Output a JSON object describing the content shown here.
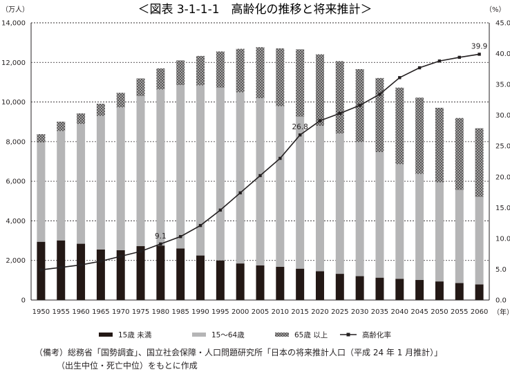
{
  "chart_data": {
    "type": "bar",
    "stacked": true,
    "title": "＜図表 3-1-1-1　高齢化の推移と将来推計＞",
    "y_left_unit": "（万人）",
    "y_right_unit": "（%）",
    "x_unit": "（年）",
    "ylim_left": [
      0,
      14000
    ],
    "ylim_right": [
      0,
      45
    ],
    "left_ticks": [
      "0",
      "2,000",
      "4,000",
      "6,000",
      "8,000",
      "10,000",
      "12,000",
      "14,000"
    ],
    "right_ticks": [
      "0.0",
      "5.0",
      "10.0",
      "15.0",
      "20.0",
      "25.0",
      "30.0",
      "35.0",
      "40.0",
      "45.0"
    ],
    "categories": [
      "1950",
      "1955",
      "1960",
      "1965",
      "1970",
      "1975",
      "1980",
      "1985",
      "1990",
      "1995",
      "2000",
      "2005",
      "2010",
      "2015",
      "2020",
      "2025",
      "2030",
      "2035",
      "2040",
      "2045",
      "2050",
      "2055",
      "2060"
    ],
    "series": [
      {
        "name": "15歳 未満",
        "color": "#231815",
        "values": [
          2943,
          3012,
          2843,
          2553,
          2515,
          2722,
          2751,
          2603,
          2249,
          2001,
          1847,
          1752,
          1680,
          1583,
          1457,
          1324,
          1204,
          1129,
          1073,
          1012,
          939,
          861,
          791
        ]
      },
      {
        "name": "15～64歳",
        "color": "#b5b5b6",
        "values": [
          5017,
          5517,
          6047,
          6744,
          7212,
          7581,
          7883,
          8251,
          8590,
          8726,
          8638,
          8442,
          8103,
          7682,
          7341,
          7084,
          6773,
          6343,
          5787,
          5353,
          5001,
          4706,
          4418
        ]
      },
      {
        "name": "65歳 以上",
        "color": "#595757",
        "values": [
          416,
          479,
          535,
          618,
          739,
          887,
          1065,
          1247,
          1489,
          1828,
          2204,
          2576,
          2925,
          3395,
          3612,
          3657,
          3685,
          3741,
          3868,
          3856,
          3768,
          3626,
          3464
        ]
      }
    ],
    "line": {
      "name": "高齢化率",
      "axis": "right",
      "values": [
        4.9,
        5.3,
        5.7,
        6.3,
        7.1,
        7.9,
        9.1,
        10.3,
        12.1,
        14.6,
        17.4,
        20.2,
        23.0,
        26.8,
        29.1,
        30.3,
        31.6,
        33.4,
        36.1,
        37.7,
        38.8,
        39.4,
        39.9
      ]
    },
    "annotations": [
      {
        "category": "1980",
        "label": "9.1"
      },
      {
        "category": "2015",
        "label": "26.8"
      },
      {
        "category": "2060",
        "label": "39.9"
      }
    ],
    "legend": [
      "15歳 未満",
      "15～64歳",
      "65歳 以上",
      "高齢化率"
    ]
  },
  "note": {
    "line1": "（備考）総務省「国勢調査」、国立社会保障・人口問題研究所「日本の将来推計人口（平成 24 年 1 月推計）」",
    "line2": "（出生中位・死亡中位）をもとに作成"
  }
}
